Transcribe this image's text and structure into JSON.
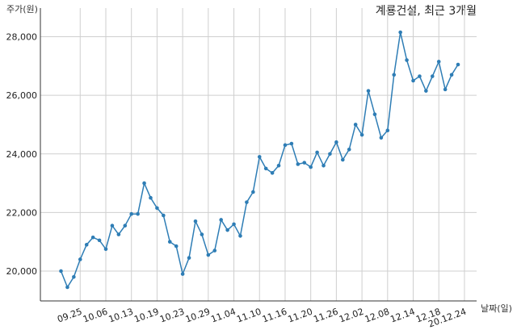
{
  "chart_data": {
    "type": "line",
    "title": "계룡건설, 최근 3개월",
    "ylabel": "주가(원)",
    "xlabel": "날짜(일)",
    "ylim": [
      19000,
      28700
    ],
    "yticks": [
      20000,
      22000,
      24000,
      26000,
      28000
    ],
    "ytick_labels": [
      "20,000",
      "22,000",
      "24,000",
      "26,000",
      "28,000"
    ],
    "grid": true,
    "line_color": "#2e7db5",
    "xtick_labels": [
      "09.25",
      "10.06",
      "10.13",
      "10.19",
      "10.23",
      "10.29",
      "11.04",
      "11.10",
      "11.16",
      "11.20",
      "11.26",
      "12.02",
      "12.08",
      "12.14",
      "12.18",
      "20.12.24"
    ],
    "xtick_indices": [
      3,
      7,
      11,
      15,
      19,
      23,
      27,
      31,
      35,
      39,
      43,
      47,
      51,
      55,
      59,
      63
    ],
    "series": [
      {
        "values": [
          20000,
          19450,
          19800,
          20400,
          20900,
          21150,
          21050,
          20750,
          21550,
          21250,
          21550,
          21950,
          21950,
          23000,
          22500,
          22150,
          21900,
          21000,
          20850,
          19900,
          20450,
          21700,
          21250,
          20550,
          20700,
          21750,
          21400,
          21600,
          21200,
          22350,
          22700,
          23900,
          23500,
          23350,
          23600,
          24300,
          24350,
          23650,
          23700,
          23550,
          24050,
          23600,
          24000,
          24400,
          23800,
          24150,
          25000,
          24650,
          26150,
          25350,
          24550,
          24800,
          26700,
          28150,
          27200,
          26500,
          26650,
          26150,
          26650,
          27150,
          26200,
          26700,
          27050
        ]
      }
    ]
  }
}
